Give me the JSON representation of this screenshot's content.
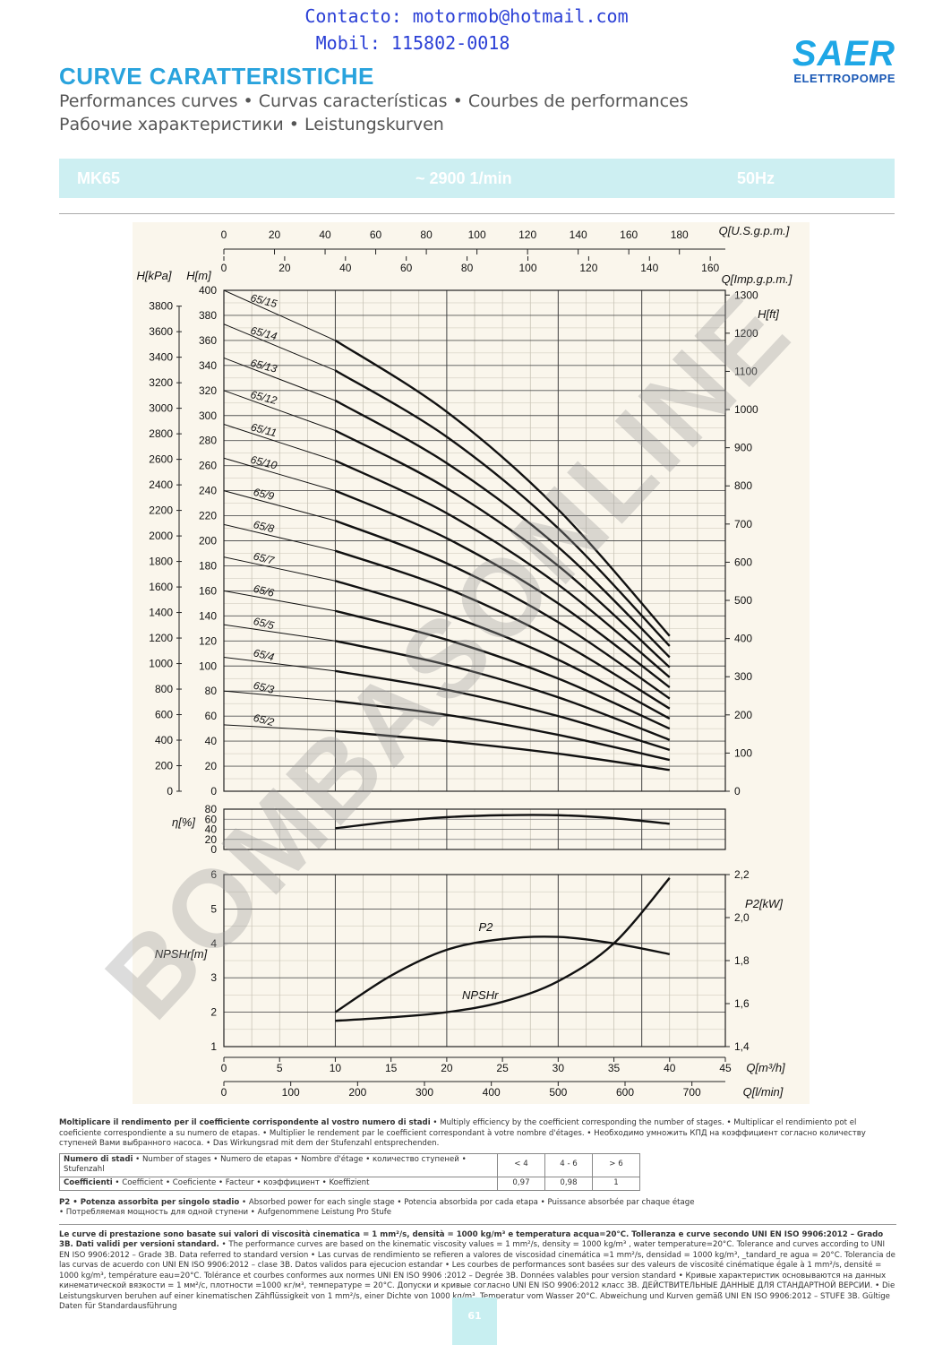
{
  "contact": {
    "line1": "Contacto: motormob@hotmail.com",
    "line2": "Mobil: 115802-0018"
  },
  "logo": {
    "brand": "SAER",
    "sub": "ELETTROPOMPE"
  },
  "header": {
    "title": "CURVE CARATTERISTICHE",
    "subtitle1": "Performances curves • Curvas características • Courbes de performances",
    "subtitle2": "Рабочие характеристики • Leistungskurven"
  },
  "band": {
    "model": "MK65",
    "speed": "~ 2900 1/min",
    "freq": "50Hz"
  },
  "watermark": "BOMBASONLINE",
  "colors": {
    "accent": "#29a3dd",
    "band": "#cdeff2",
    "chart_bg": "#faf6ec",
    "curve": "#111111"
  },
  "chart_data": [
    {
      "type": "line",
      "x_axes": [
        {
          "label": "Q[U.S.g.p.m.]",
          "ticks": [
            "0",
            "20",
            "40",
            "60",
            "80",
            "100",
            "120",
            "140",
            "160",
            "180"
          ]
        },
        {
          "label": "Q[Imp.g.p.m.]",
          "ticks": [
            "0",
            "20",
            "40",
            "60",
            "80",
            "100",
            "120",
            "140",
            "160"
          ]
        }
      ],
      "y_left_label_kpa": "H[kPa]",
      "y_left_label_m": "H[m]",
      "y_right_label": "H[ft]",
      "ylim": [
        0,
        400
      ],
      "y_ticks_m": [
        "0",
        "20",
        "40",
        "60",
        "80",
        "100",
        "120",
        "140",
        "160",
        "180",
        "200",
        "220",
        "240",
        "260",
        "280",
        "300",
        "320",
        "340",
        "360",
        "380",
        "400"
      ],
      "y_ticks_kpa": [
        "0",
        "200",
        "400",
        "600",
        "800",
        "1000",
        "1200",
        "1400",
        "1600",
        "1800",
        "2000",
        "2200",
        "2400",
        "2600",
        "2800",
        "3000",
        "3200",
        "3400",
        "3600",
        "3800"
      ],
      "y_ticks_ft": [
        "0",
        "100",
        "200",
        "300",
        "400",
        "500",
        "600",
        "700",
        "800",
        "900",
        "1000",
        "1100",
        "1200",
        "1300"
      ],
      "x_unit": "m3/h",
      "series": [
        {
          "name": "65/2",
          "x": [
            0,
            10,
            20,
            30,
            40
          ],
          "y": [
            53,
            48,
            40,
            30,
            17
          ]
        },
        {
          "name": "65/3",
          "x": [
            0,
            10,
            20,
            30,
            40
          ],
          "y": [
            80,
            72,
            61,
            45,
            25
          ]
        },
        {
          "name": "65/4",
          "x": [
            0,
            10,
            20,
            30,
            40
          ],
          "y": [
            107,
            96,
            81,
            60,
            33
          ]
        },
        {
          "name": "65/5",
          "x": [
            0,
            10,
            20,
            30,
            40
          ],
          "y": [
            133,
            120,
            101,
            75,
            41
          ]
        },
        {
          "name": "65/6",
          "x": [
            0,
            10,
            20,
            30,
            40
          ],
          "y": [
            160,
            144,
            121,
            90,
            50
          ]
        },
        {
          "name": "65/7",
          "x": [
            0,
            10,
            20,
            30,
            40
          ],
          "y": [
            187,
            168,
            141,
            105,
            58
          ]
        },
        {
          "name": "65/8",
          "x": [
            0,
            10,
            20,
            30,
            40
          ],
          "y": [
            213,
            192,
            162,
            120,
            66
          ]
        },
        {
          "name": "65/9",
          "x": [
            0,
            10,
            20,
            30,
            40
          ],
          "y": [
            240,
            216,
            182,
            135,
            74
          ]
        },
        {
          "name": "65/10",
          "x": [
            0,
            10,
            20,
            30,
            40
          ],
          "y": [
            266,
            240,
            202,
            150,
            83
          ]
        },
        {
          "name": "65/11",
          "x": [
            0,
            10,
            20,
            30,
            40
          ],
          "y": [
            293,
            264,
            222,
            165,
            91
          ]
        },
        {
          "name": "65/12",
          "x": [
            0,
            10,
            20,
            30,
            40
          ],
          "y": [
            320,
            288,
            242,
            180,
            99
          ]
        },
        {
          "name": "65/13",
          "x": [
            0,
            10,
            20,
            30,
            40
          ],
          "y": [
            346,
            312,
            262,
            195,
            107
          ]
        },
        {
          "name": "65/14",
          "x": [
            0,
            10,
            20,
            30,
            40
          ],
          "y": [
            373,
            336,
            283,
            210,
            116
          ]
        },
        {
          "name": "65/15",
          "x": [
            0,
            10,
            20,
            30,
            40
          ],
          "y": [
            400,
            360,
            303,
            225,
            124
          ]
        }
      ]
    },
    {
      "type": "line",
      "ylabel": "η[%]",
      "ylim": [
        0,
        80
      ],
      "y_ticks": [
        "0",
        "20",
        "40",
        "60",
        "80"
      ],
      "series": [
        {
          "name": "",
          "x": [
            10,
            15,
            20,
            25,
            30,
            35,
            40
          ],
          "y": [
            42,
            55,
            64,
            68,
            68,
            62,
            51
          ]
        }
      ]
    },
    {
      "type": "line",
      "ylabel_left": "NPSHr[m]",
      "ylabel_right": "P2[kW]",
      "ylim_left": [
        1,
        6
      ],
      "ylim_right": [
        1.4,
        2.2
      ],
      "y_ticks_left": [
        "1",
        "2",
        "3",
        "4",
        "5",
        "6"
      ],
      "y_ticks_right": [
        "1,4",
        "1,6",
        "1,8",
        "2,0",
        "2,2"
      ],
      "x_axes": [
        {
          "label": "Q[m³/h]",
          "ticks": [
            "0",
            "5",
            "10",
            "15",
            "20",
            "25",
            "30",
            "35",
            "40",
            "45"
          ]
        },
        {
          "label": "Q[l/min]",
          "ticks": [
            "0",
            "100",
            "200",
            "300",
            "400",
            "500",
            "600",
            "700"
          ]
        }
      ],
      "series": [
        {
          "name": "P2",
          "axis": "right",
          "x": [
            10,
            15,
            20,
            25,
            30,
            35,
            40
          ],
          "y": [
            1.56,
            1.73,
            1.85,
            1.9,
            1.91,
            1.88,
            1.83
          ]
        },
        {
          "name": "NPSHr",
          "axis": "left",
          "x": [
            10,
            15,
            20,
            25,
            30,
            35,
            40
          ],
          "y": [
            1.75,
            1.85,
            2.0,
            2.3,
            2.9,
            4.0,
            5.9
          ]
        }
      ]
    }
  ],
  "notes": {
    "p1_bold": "Moltiplicare il rendimento per il coefficiente corrispondente al vostro numero di stadi",
    "p1_rest": " • Multiply efficiency by the coefficient corresponding the number of stages. • Multiplicar el rendimiento pot el coeficiente correspondiente a su numero de etapas. • Multiplier le rendement par le coefficient correspondant à votre nombre d'étages. • Необходимо умножить КПД на коэффициент согласно количеству ступеней Вами выбранного насоса. • Das Wirkungsrad mit dem der Stufenzahl entsprechenden.",
    "table_row1_bold": "Numero di stadi",
    "table_row1_rest": " • Number of stages • Numero de etapas • Nombre d'étage • количество ступеней • Stufenzahl",
    "table_row2_bold": "Coefficienti",
    "table_row2_rest": " • Coefficient • Coeficiente • Facteur • коэффициент • Koeffizient",
    "stages": [
      "< 4",
      "4 - 6",
      "> 6"
    ],
    "coefficients": [
      "0,97",
      "0,98",
      "1"
    ],
    "p2_bold": "P2 • Potenza assorbita per singolo stadio",
    "p2_rest": " • Absorbed power for each single stage • Potencia absorbida por cada etapa • Puissance absorbée par chaque étage",
    "p2_line2": "• Потребляемая мощность для одной ступени • Aufgenommene Leistung Pro Stufe",
    "p3_bold": "Le curve di prestazione sono basate sui valori di viscosità cinematica = 1 mm²/s, densità = 1000 kg/m³ e temperatura acqua=20°C. Tolleranza e curve secondo UNI EN ISO 9906:2012 – Grado 3B. Dati validi per versioni standard.",
    "p3_rest": " • The performance curves are based on the kinematic viscosity values = 1 mm²/s, density = 1000 kg/m³ , water temperature=20°C. Tolerance and curves according to UNI EN ISO 9906:2012 – Grade 3B. Data referred to standard version • Las curvas de rendimiento se refieren a valores de viscosidad cinemática =1 mm²/s, densidad = 1000 kg/m³, _tandard_re agua = 20°C. Tolerancia de las curvas de acuerdo con UNI EN ISO 9906:2012 – clase 3B. Datos validos para ejecucion estandar • Les courbes de performances sont basées sur des valeurs de viscosité cinématique égale à 1 mm²/s, densité = 1000 kg/m³, température eau=20°C. Tolérance et courbes conformes aux normes UNI EN ISO 9906 :2012 – Degrée 3B. Données valables pour version standard • Кривые характеристик основываются на данных кинематической вязкости = 1 мм²/с, плотности =1000 кг/м³, температуре = 20°C. Допуски и кривые согласно UNI EN ISO 9906:2012 класс 3B. ДЕЙСТВИТЕЛЬНЫЕ ДАННЫЕ ДЛЯ СТАНДАРТНОЙ ВЕРСИИ. • Die Leistungskurven beruhen auf einer kinematischen Zähflüssigkeit von 1 mm²/s, einer Dichte von 1000 kg/m³, Temperatur vom Wasser 20°C. Abweichung und Kurven gemäß UNI EN ISO 9906:2012 – STUFE 3B. Gültige Daten für Standardausführung"
  },
  "page_number": "61"
}
